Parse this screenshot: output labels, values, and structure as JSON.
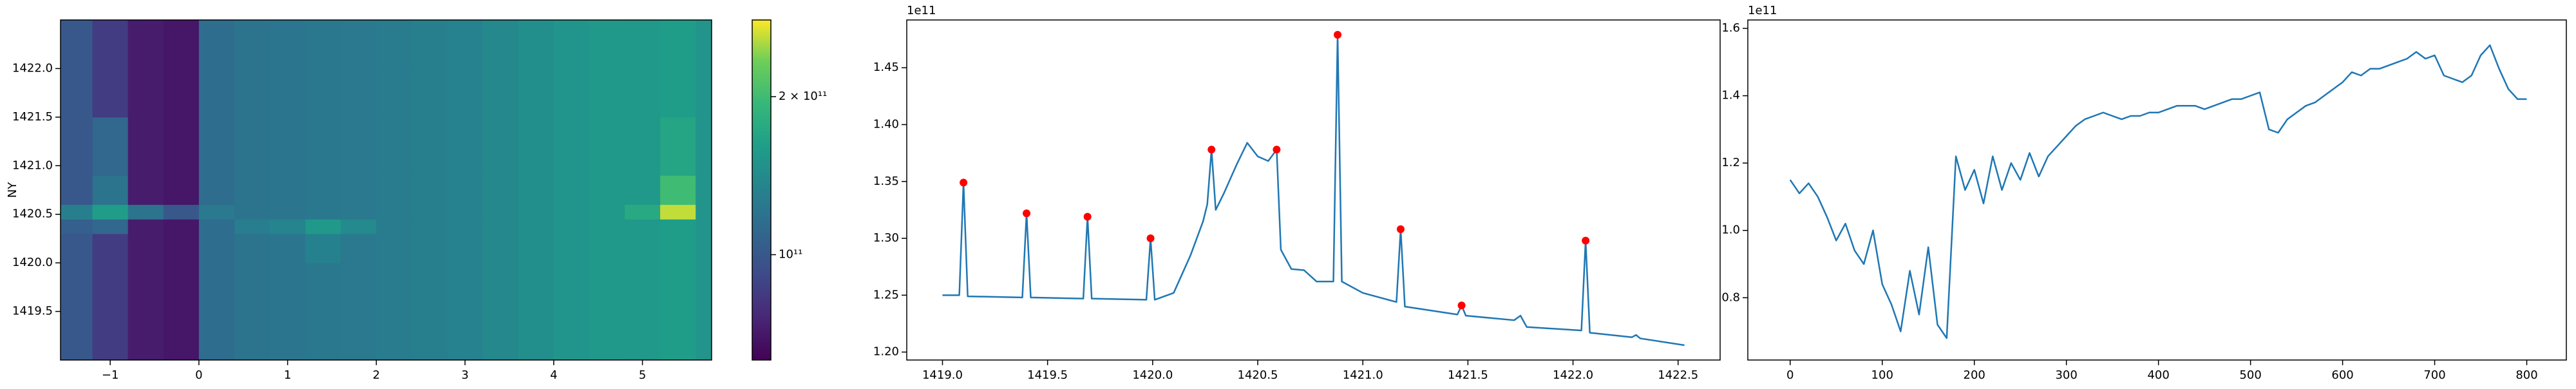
{
  "chart_data": [
    {
      "type": "heatmap",
      "ylabel": "NY",
      "xlim": [
        -1.56,
        5.78
      ],
      "ylim": [
        1419.0,
        1422.5
      ],
      "xticks": [
        {
          "value": -1,
          "label": "−1"
        },
        0,
        1,
        2,
        3,
        4,
        5
      ],
      "yticks": [
        1419.5,
        {
          "value": 1420,
          "label": "1420.0"
        },
        1420.5,
        {
          "value": 1421,
          "label": "1421.0"
        },
        1421.5,
        {
          "value": 1422,
          "label": "1422.0"
        }
      ],
      "x_edges": [
        -1.56,
        -1.2,
        -0.8,
        -0.4,
        0,
        0.4,
        0.8,
        1.2,
        1.6,
        2.0,
        2.4,
        2.8,
        3.2,
        3.6,
        4.0,
        4.4,
        4.8,
        5.2,
        5.6,
        5.78
      ],
      "y_edges": [
        1419.0,
        1419.5,
        1420.0,
        1420.3,
        1420.45,
        1420.6,
        1420.9,
        1421.5,
        1422.0,
        1422.5
      ],
      "z": [
        [
          100000000000.0,
          85000000000.0,
          72000000000.0,
          70000000000.0,
          115000000000.0,
          120000000000.0,
          122000000000.0,
          124000000000.0,
          125000000000.0,
          127000000000.0,
          130000000000.0,
          133000000000.0,
          138000000000.0,
          145000000000.0,
          152000000000.0,
          156000000000.0,
          155000000000.0,
          160000000000.0,
          150000000000.0
        ],
        [
          100000000000.0,
          85000000000.0,
          72000000000.0,
          70000000000.0,
          115000000000.0,
          120000000000.0,
          122000000000.0,
          124000000000.0,
          125000000000.0,
          127000000000.0,
          130000000000.0,
          133000000000.0,
          138000000000.0,
          145000000000.0,
          152000000000.0,
          156000000000.0,
          155000000000.0,
          160000000000.0,
          150000000000.0
        ],
        [
          100000000000.0,
          85000000000.0,
          72000000000.0,
          70000000000.0,
          115000000000.0,
          120000000000.0,
          122000000000.0,
          132000000000.0,
          125000000000.0,
          127000000000.0,
          130000000000.0,
          133000000000.0,
          138000000000.0,
          145000000000.0,
          152000000000.0,
          156000000000.0,
          155000000000.0,
          160000000000.0,
          150000000000.0
        ],
        [
          105000000000.0,
          110000000000.0,
          72000000000.0,
          70000000000.0,
          115000000000.0,
          128000000000.0,
          135000000000.0,
          155000000000.0,
          140000000000.0,
          127000000000.0,
          130000000000.0,
          133000000000.0,
          138000000000.0,
          145000000000.0,
          152000000000.0,
          156000000000.0,
          155000000000.0,
          160000000000.0,
          150000000000.0
        ],
        [
          130000000000.0,
          160000000000.0,
          120000000000.0,
          100000000000.0,
          125000000000.0,
          120000000000.0,
          122000000000.0,
          124000000000.0,
          125000000000.0,
          127000000000.0,
          130000000000.0,
          133000000000.0,
          138000000000.0,
          145000000000.0,
          152000000000.0,
          156000000000.0,
          175000000000.0,
          260000000000.0,
          150000000000.0
        ],
        [
          100000000000.0,
          120000000000.0,
          72000000000.0,
          70000000000.0,
          115000000000.0,
          120000000000.0,
          122000000000.0,
          124000000000.0,
          125000000000.0,
          127000000000.0,
          130000000000.0,
          133000000000.0,
          138000000000.0,
          145000000000.0,
          152000000000.0,
          156000000000.0,
          155000000000.0,
          200000000000.0,
          150000000000.0
        ],
        [
          100000000000.0,
          110000000000.0,
          72000000000.0,
          70000000000.0,
          115000000000.0,
          120000000000.0,
          122000000000.0,
          124000000000.0,
          125000000000.0,
          127000000000.0,
          130000000000.0,
          133000000000.0,
          138000000000.0,
          145000000000.0,
          152000000000.0,
          156000000000.0,
          155000000000.0,
          170000000000.0,
          150000000000.0
        ],
        [
          100000000000.0,
          85000000000.0,
          72000000000.0,
          70000000000.0,
          115000000000.0,
          120000000000.0,
          122000000000.0,
          124000000000.0,
          125000000000.0,
          127000000000.0,
          130000000000.0,
          133000000000.0,
          138000000000.0,
          145000000000.0,
          152000000000.0,
          156000000000.0,
          155000000000.0,
          160000000000.0,
          150000000000.0
        ],
        [
          100000000000.0,
          85000000000.0,
          72000000000.0,
          70000000000.0,
          115000000000.0,
          120000000000.0,
          122000000000.0,
          124000000000.0,
          125000000000.0,
          127000000000.0,
          130000000000.0,
          133000000000.0,
          138000000000.0,
          145000000000.0,
          152000000000.0,
          156000000000.0,
          155000000000.0,
          160000000000.0,
          150000000000.0
        ]
      ],
      "colormap": "viridis",
      "color_scale": "log",
      "clim": [
        63000000000.0,
        280000000000.0
      ],
      "cticks": [
        {
          "value": 100000000000.0,
          "label": "10¹¹"
        },
        {
          "value": 200000000000.0,
          "label": "2 × 10¹¹"
        }
      ]
    },
    {
      "type": "line",
      "xlim": [
        1418.83,
        1422.7
      ],
      "ylim": [
        119300000000.0,
        149200000000.0
      ],
      "y_offset_text": "1e11",
      "xticks": [
        {
          "value": 1419,
          "label": "1419.0"
        },
        1419.5,
        {
          "value": 1420,
          "label": "1420.0"
        },
        1420.5,
        {
          "value": 1421,
          "label": "1421.0"
        },
        1421.5,
        {
          "value": 1422,
          "label": "1422.0"
        },
        1422.5
      ],
      "yticks": [
        {
          "value": 120000000000.0,
          "label": "1.20"
        },
        {
          "value": 125000000000.0,
          "label": "1.25"
        },
        {
          "value": 130000000000.0,
          "label": "1.30"
        },
        {
          "value": 135000000000.0,
          "label": "1.35"
        },
        {
          "value": 140000000000.0,
          "label": "1.40"
        },
        {
          "value": 145000000000.0,
          "label": "1.45"
        }
      ],
      "series": [
        {
          "color": "#1f77b4",
          "x": [
            1419.0,
            1419.08,
            1419.1,
            1419.12,
            1419.38,
            1419.4,
            1419.42,
            1419.67,
            1419.69,
            1419.71,
            1419.97,
            1419.99,
            1420.01,
            1420.1,
            1420.18,
            1420.24,
            1420.26,
            1420.28,
            1420.3,
            1420.34,
            1420.4,
            1420.45,
            1420.5,
            1420.55,
            1420.59,
            1420.61,
            1420.66,
            1420.72,
            1420.78,
            1420.86,
            1420.88,
            1420.9,
            1421.0,
            1421.16,
            1421.18,
            1421.2,
            1421.45,
            1421.47,
            1421.49,
            1421.72,
            1421.75,
            1421.78,
            1422.04,
            1422.06,
            1422.08,
            1422.28,
            1422.3,
            1422.32,
            1422.53
          ],
          "values": [
            125000000000.0,
            125000000000.0,
            134900000000.0,
            124900000000.0,
            124800000000.0,
            132200000000.0,
            124800000000.0,
            124700000000.0,
            131900000000.0,
            124700000000.0,
            124600000000.0,
            130000000000.0,
            124600000000.0,
            125200000000.0,
            128500000000.0,
            131500000000.0,
            133000000000.0,
            137800000000.0,
            132500000000.0,
            134000000000.0,
            136500000000.0,
            138400000000.0,
            137200000000.0,
            136800000000.0,
            137800000000.0,
            129000000000.0,
            127300000000.0,
            127200000000.0,
            126200000000.0,
            126200000000.0,
            147900000000.0,
            126200000000.0,
            125200000000.0,
            124400000000.0,
            130800000000.0,
            124000000000.0,
            123300000000.0,
            124100000000.0,
            123200000000.0,
            122800000000.0,
            123200000000.0,
            122200000000.0,
            121900000000.0,
            129800000000.0,
            121700000000.0,
            121300000000.0,
            121500000000.0,
            121200000000.0,
            120600000000.0
          ]
        },
        {
          "type": "scatter",
          "color": "#ff0000",
          "x": [
            1419.1,
            1419.4,
            1419.69,
            1419.99,
            1420.28,
            1420.59,
            1420.88,
            1421.18,
            1421.47,
            1422.06
          ],
          "values": [
            134900000000.0,
            132200000000.0,
            131900000000.0,
            130000000000.0,
            137800000000.0,
            137800000000.0,
            147900000000.0,
            130800000000.0,
            124100000000.0,
            129800000000.0
          ]
        }
      ]
    },
    {
      "type": "line",
      "xlim": [
        -46,
        843
      ],
      "ylim": [
        61500000000.0,
        162500000000.0
      ],
      "y_offset_text": "1e11",
      "xticks": [
        0,
        100,
        200,
        300,
        400,
        500,
        600,
        700,
        800
      ],
      "yticks": [
        {
          "value": 80000000000.0,
          "label": "0.8"
        },
        {
          "value": 100000000000.0,
          "label": "1.0"
        },
        {
          "value": 120000000000.0,
          "label": "1.2"
        },
        {
          "value": 140000000000.0,
          "label": "1.4"
        },
        {
          "value": 160000000000.0,
          "label": "1.6"
        }
      ],
      "series": [
        {
          "color": "#1f77b4",
          "x": [
            0,
            10,
            20,
            30,
            40,
            50,
            60,
            70,
            80,
            90,
            100,
            110,
            120,
            130,
            140,
            150,
            160,
            170,
            180,
            190,
            200,
            210,
            220,
            230,
            240,
            250,
            260,
            270,
            280,
            290,
            300,
            310,
            320,
            330,
            340,
            350,
            360,
            370,
            380,
            390,
            400,
            410,
            420,
            430,
            440,
            450,
            460,
            470,
            480,
            490,
            500,
            510,
            520,
            530,
            540,
            550,
            560,
            570,
            580,
            590,
            600,
            610,
            620,
            630,
            640,
            650,
            660,
            670,
            680,
            690,
            700,
            710,
            720,
            730,
            740,
            750,
            760,
            770,
            780,
            790,
            800
          ],
          "values": [
            115000000000.0,
            111000000000.0,
            114000000000.0,
            110000000000.0,
            104000000000.0,
            97000000000.0,
            102000000000.0,
            94000000000.0,
            90000000000.0,
            100000000000.0,
            84000000000.0,
            78000000000.0,
            70000000000.0,
            88000000000.0,
            75000000000.0,
            95000000000.0,
            72000000000.0,
            68000000000.0,
            122000000000.0,
            112000000000.0,
            118000000000.0,
            108000000000.0,
            122000000000.0,
            112000000000.0,
            120000000000.0,
            115000000000.0,
            123000000000.0,
            116000000000.0,
            122000000000.0,
            125000000000.0,
            128000000000.0,
            131000000000.0,
            133000000000.0,
            134000000000.0,
            135000000000.0,
            134000000000.0,
            133000000000.0,
            134000000000.0,
            134000000000.0,
            135000000000.0,
            135000000000.0,
            136000000000.0,
            137000000000.0,
            137000000000.0,
            137000000000.0,
            136000000000.0,
            137000000000.0,
            138000000000.0,
            139000000000.0,
            139000000000.0,
            140000000000.0,
            141000000000.0,
            130000000000.0,
            129000000000.0,
            133000000000.0,
            135000000000.0,
            137000000000.0,
            138000000000.0,
            140000000000.0,
            142000000000.0,
            144000000000.0,
            147000000000.0,
            146000000000.0,
            148000000000.0,
            148000000000.0,
            149000000000.0,
            150000000000.0,
            151000000000.0,
            153000000000.0,
            151000000000.0,
            152000000000.0,
            146000000000.0,
            145000000000.0,
            144000000000.0,
            146000000000.0,
            152000000000.0,
            155000000000.0,
            148000000000.0,
            142000000000.0,
            139000000000.0,
            139000000000.0
          ]
        }
      ]
    }
  ]
}
